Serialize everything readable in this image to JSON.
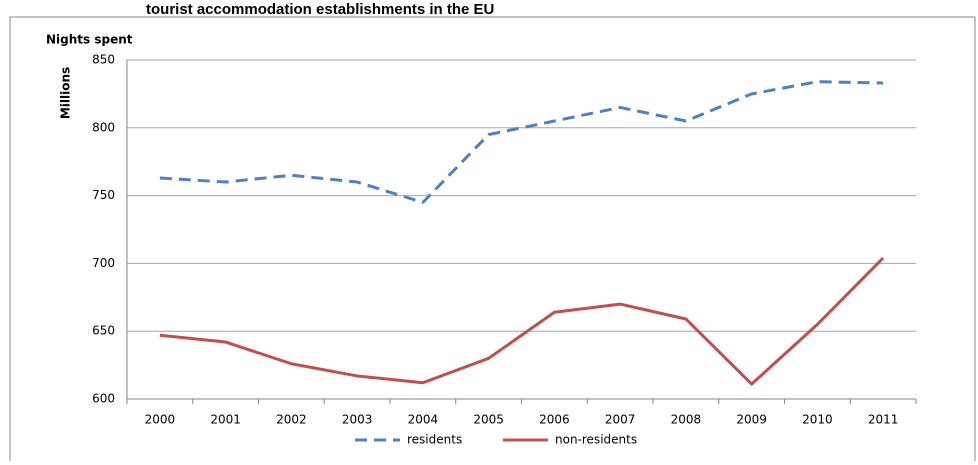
{
  "chart_data": {
    "type": "line",
    "title": "tourist accommodation establishments in the EU",
    "y_axis_title": "Nights spent",
    "y_axis_unit": "Millions",
    "categories": [
      "2000",
      "2001",
      "2002",
      "2003",
      "2004",
      "2005",
      "2006",
      "2007",
      "2008",
      "2009",
      "2010",
      "2011"
    ],
    "series": [
      {
        "name": "residents",
        "color": "#4f81bd",
        "style": "dashed",
        "values": [
          763,
          760,
          765,
          760,
          745,
          795,
          805,
          815,
          805,
          825,
          834,
          833
        ]
      },
      {
        "name": "non-residents",
        "color": "#c0504d",
        "style": "solid",
        "values": [
          647,
          642,
          626,
          617,
          612,
          630,
          664,
          670,
          659,
          611,
          655,
          704
        ]
      }
    ],
    "ylim": [
      600,
      850
    ],
    "yticks": [
      600,
      650,
      700,
      750,
      800,
      850
    ],
    "grid": true,
    "legend": "bottom"
  }
}
